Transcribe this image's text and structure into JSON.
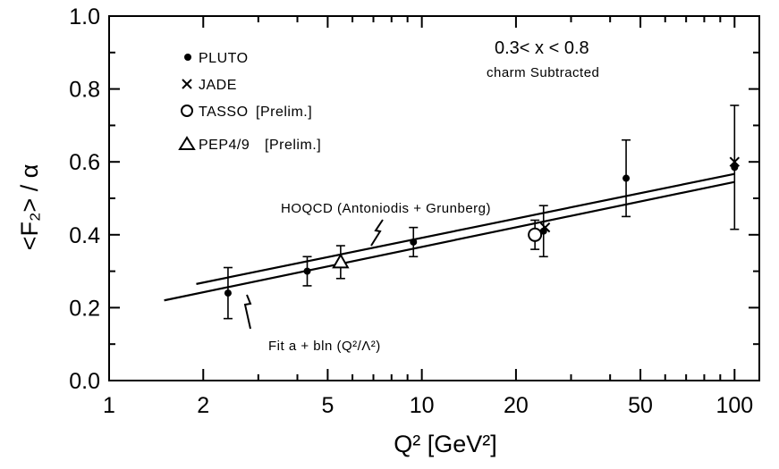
{
  "chart_data": {
    "type": "scatter",
    "title": "",
    "xlabel": "Q² [GeV²]",
    "ylabel": "<F₂> / α",
    "x_scale": "log",
    "xlim": [
      1,
      120
    ],
    "ylim": [
      0.0,
      1.0
    ],
    "x_ticks": [
      {
        "value": 1,
        "label": "1"
      },
      {
        "value": 2,
        "label": "2"
      },
      {
        "value": 5,
        "label": "5"
      },
      {
        "value": 10,
        "label": "10"
      },
      {
        "value": 20,
        "label": "20"
      },
      {
        "value": 50,
        "label": "50"
      },
      {
        "value": 100,
        "label": "100"
      }
    ],
    "y_ticks": [
      {
        "value": 0.0,
        "label": "0.0"
      },
      {
        "value": 0.2,
        "label": "0.2"
      },
      {
        "value": 0.4,
        "label": "0.4"
      },
      {
        "value": 0.6,
        "label": "0.6"
      },
      {
        "value": 0.8,
        "label": "0.8"
      },
      {
        "value": 1.0,
        "label": "1.0"
      }
    ],
    "annotations": {
      "range": "0.3< x < 0.8",
      "subtracted": "charm Subtracted",
      "hoqcd_label": "HOQCD (Antoniodis + Grunberg)",
      "fit_label": "Fit a + bln (Q²/Λ²)"
    },
    "legend": {
      "position": "top-left",
      "entries": [
        {
          "marker": "dot",
          "name": "PLUTO",
          "tag": ""
        },
        {
          "marker": "cross",
          "name": "JADE",
          "tag": ""
        },
        {
          "marker": "circle",
          "name": "TASSO",
          "tag": "[Prelim.]"
        },
        {
          "marker": "triangle",
          "name": "PEP4/9",
          "tag": "[Prelim.]"
        }
      ]
    },
    "series": [
      {
        "name": "PLUTO",
        "marker": "dot",
        "points": [
          {
            "x": 2.4,
            "y": 0.24,
            "yerr": 0.07
          },
          {
            "x": 4.3,
            "y": 0.3,
            "yerr": 0.04
          },
          {
            "x": 9.4,
            "y": 0.38,
            "yerr": 0.04
          },
          {
            "x": 24.5,
            "y": 0.41,
            "yerr": 0.07
          },
          {
            "x": 45,
            "y": 0.555,
            "yerr": 0.105
          },
          {
            "x": 100,
            "y": 0.585,
            "yerr": 0.17
          }
        ]
      },
      {
        "name": "JADE",
        "marker": "cross",
        "points": [
          {
            "x": 24.8,
            "y": 0.42,
            "yerr": 0.0
          },
          {
            "x": 100,
            "y": 0.6,
            "yerr": 0.0
          }
        ]
      },
      {
        "name": "TASSO",
        "marker": "circle",
        "points": [
          {
            "x": 23,
            "y": 0.4,
            "yerr": 0.04
          }
        ]
      },
      {
        "name": "PEP4/9",
        "marker": "triangle",
        "points": [
          {
            "x": 5.5,
            "y": 0.325,
            "yerr": 0.045
          }
        ]
      }
    ],
    "lines": [
      {
        "name": "HOQCD",
        "x": [
          1.9,
          100
        ],
        "y": [
          0.265,
          0.567
        ]
      },
      {
        "name": "Fit",
        "x": [
          1.5,
          100
        ],
        "y": [
          0.22,
          0.545
        ]
      }
    ]
  }
}
